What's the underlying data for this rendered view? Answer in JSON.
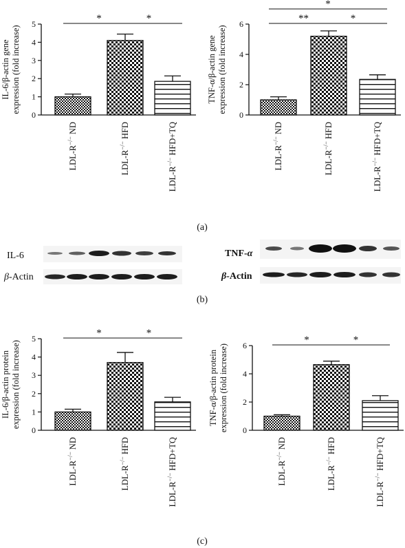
{
  "panels": [
    {
      "label": "(a)"
    },
    {
      "label": "(b)"
    },
    {
      "label": "(c)"
    }
  ],
  "blots": {
    "left": {
      "labels": [
        "IL-6",
        "β-Actin"
      ],
      "label_styles": [
        "normal",
        "italic-prefix"
      ]
    },
    "right": {
      "labels": [
        "TNF-α",
        "β-Actin"
      ],
      "label_styles": [
        "bold",
        "bold"
      ]
    }
  },
  "chart_data": [
    {
      "type": "bar",
      "panel": "(a)",
      "categories": [
        "LDL-R−/− ND",
        "LDL-R−/− HFD",
        "LDL-R−/− HFD+TQ"
      ],
      "category_display": [
        {
          "base": "LDL-R",
          "sup": "−/−",
          "rest": " ND"
        },
        {
          "base": "LDL-R",
          "sup": "−/−",
          "rest": " HFD"
        },
        {
          "base": "LDL-R",
          "sup": "−/−",
          "rest": " HFD+TQ"
        }
      ],
      "values": [
        1.0,
        4.1,
        1.85
      ],
      "errors": [
        0.15,
        0.35,
        0.3
      ],
      "patterns": [
        "fine-check",
        "coarse-check",
        "horizontal-lines"
      ],
      "ylabel_lines": [
        "IL-6/β-actin gene",
        "expression (fold increase)"
      ],
      "ylim": [
        0,
        5
      ],
      "yticks": [
        0,
        1,
        2,
        3,
        4,
        5
      ],
      "significance": [
        {
          "from": 0,
          "to": 1,
          "label": "*",
          "level": 0
        },
        {
          "from": 1,
          "to": 2,
          "label": "*",
          "level": 0
        }
      ]
    },
    {
      "type": "bar",
      "panel": "(a)",
      "categories": [
        "LDL-R−/− ND",
        "LDL-R−/− HFD",
        "LDL-R−/− HFD+TQ"
      ],
      "category_display": [
        {
          "base": "LDL-R",
          "sup": "−/−",
          "rest": " ND"
        },
        {
          "base": "LDL-R",
          "sup": "−/−",
          "rest": " HFD"
        },
        {
          "base": "LDL-R",
          "sup": "−/−",
          "rest": " HFD+TQ"
        }
      ],
      "values": [
        1.0,
        5.2,
        2.35
      ],
      "errors": [
        0.2,
        0.35,
        0.3
      ],
      "patterns": [
        "fine-check",
        "coarse-check",
        "horizontal-lines"
      ],
      "ylabel_lines": [
        "TNF-α/β-actin gene",
        "expression (fold increase)"
      ],
      "ylim": [
        0,
        6
      ],
      "yticks": [
        0,
        2,
        4,
        6
      ],
      "significance": [
        {
          "from": 0,
          "to": 1,
          "label": "**",
          "level": 0
        },
        {
          "from": 1,
          "to": 2,
          "label": "*",
          "level": 0
        },
        {
          "from": 0,
          "to": 2,
          "label": "*",
          "level": 1
        }
      ]
    },
    {
      "type": "bar",
      "panel": "(c)",
      "categories": [
        "LDL-R−/− ND",
        "LDL-R−/− HFD",
        "LDL-R−/− HFD+TQ"
      ],
      "category_display": [
        {
          "base": "LDL-R",
          "sup": "−/−",
          "rest": " ND"
        },
        {
          "base": "LDL-R",
          "sup": "−/−",
          "rest": " HFD"
        },
        {
          "base": "LDL-R",
          "sup": "−/−",
          "rest": " HFD+TQ"
        }
      ],
      "values": [
        1.0,
        3.7,
        1.55
      ],
      "errors": [
        0.15,
        0.55,
        0.25
      ],
      "patterns": [
        "fine-check",
        "coarse-check",
        "horizontal-lines"
      ],
      "ylabel_lines": [
        "IL-6/β-actin protein",
        "expression (fold increase)"
      ],
      "ylim": [
        0,
        5
      ],
      "yticks": [
        0,
        1,
        2,
        3,
        4,
        5
      ],
      "significance": [
        {
          "from": 0,
          "to": 1,
          "label": "*",
          "level": 0
        },
        {
          "from": 1,
          "to": 2,
          "label": "*",
          "level": 0
        }
      ]
    },
    {
      "type": "bar",
      "panel": "(c)",
      "categories": [
        "LDL-R−/− ND",
        "LDL-R−/− HFD",
        "LDL-R−/− HFD+TQ"
      ],
      "category_display": [
        {
          "base": "LDL-R",
          "sup": "−/−",
          "rest": " ND"
        },
        {
          "base": "LDL-R",
          "sup": "−/−",
          "rest": " HFD"
        },
        {
          "base": "LDL-R",
          "sup": "−/−",
          "rest": " HFD+TQ"
        }
      ],
      "values": [
        1.0,
        4.65,
        2.1
      ],
      "errors": [
        0.1,
        0.25,
        0.35
      ],
      "patterns": [
        "fine-check",
        "coarse-check",
        "horizontal-lines"
      ],
      "ylabel_lines": [
        "TNF-α/β-actin protein",
        "expression (fold increase)"
      ],
      "ylim": [
        0,
        6
      ],
      "yticks": [
        0,
        2,
        4,
        6
      ],
      "significance": [
        {
          "from": 0,
          "to": 1,
          "label": "*",
          "level": 0
        },
        {
          "from": 1,
          "to": 2,
          "label": "*",
          "level": 0
        }
      ]
    }
  ]
}
